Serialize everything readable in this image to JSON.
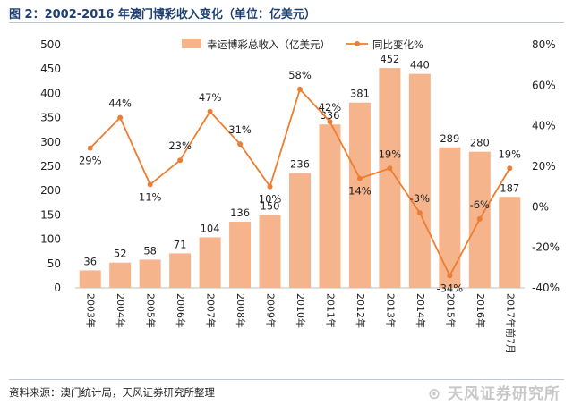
{
  "title": "图 2：2002-2016 年澳门博彩收入变化（单位：亿美元）",
  "source": "资料来源：澳门统计局，天风证券研究所整理",
  "brand": "天风证券研究所",
  "chart_data": {
    "type": "bar",
    "title": "图 2：2002-2016 年澳门博彩收入变化（单位：亿美元）",
    "categories": [
      "2003年",
      "2004年",
      "2005年",
      "2006年",
      "2007年",
      "2008年",
      "2009年",
      "2010年",
      "2011年",
      "2012年",
      "2013年",
      "2014年",
      "2015年",
      "2016年",
      "2017年前7月"
    ],
    "series": [
      {
        "name": "幸运博彩总收入（亿美元）",
        "type": "bar",
        "axis": "left",
        "color": "#f5b48c",
        "values": [
          36,
          52,
          58,
          71,
          104,
          136,
          150,
          236,
          336,
          381,
          452,
          440,
          289,
          280,
          187
        ],
        "labels": [
          "36",
          "52",
          "58",
          "71",
          "104",
          "136",
          "150",
          "236",
          "336",
          "381",
          "452",
          "440",
          "289",
          "280",
          "187"
        ]
      },
      {
        "name": "同比变化%",
        "type": "line",
        "axis": "right",
        "color": "#ed7d31",
        "values": [
          29,
          44,
          11,
          23,
          47,
          31,
          10,
          58,
          42,
          14,
          19,
          -3,
          -34,
          -6,
          19
        ],
        "labels": [
          "29%",
          "44%",
          "11%",
          "23%",
          "47%",
          "31%",
          "10%",
          "58%",
          "42%",
          "14%",
          "19%",
          "-3%",
          "-34%",
          "-6%",
          "19%"
        ]
      }
    ],
    "y_left": {
      "ylim": [
        0,
        500
      ],
      "ticks": [
        "0",
        "50",
        "100",
        "150",
        "200",
        "250",
        "300",
        "350",
        "400",
        "450",
        "500"
      ]
    },
    "y_right": {
      "ylim": [
        -40,
        80
      ],
      "ticks": [
        "-40%",
        "-20%",
        "0%",
        "20%",
        "40%",
        "60%",
        "80%"
      ]
    },
    "legend_position": "top-center",
    "grid": false
  }
}
